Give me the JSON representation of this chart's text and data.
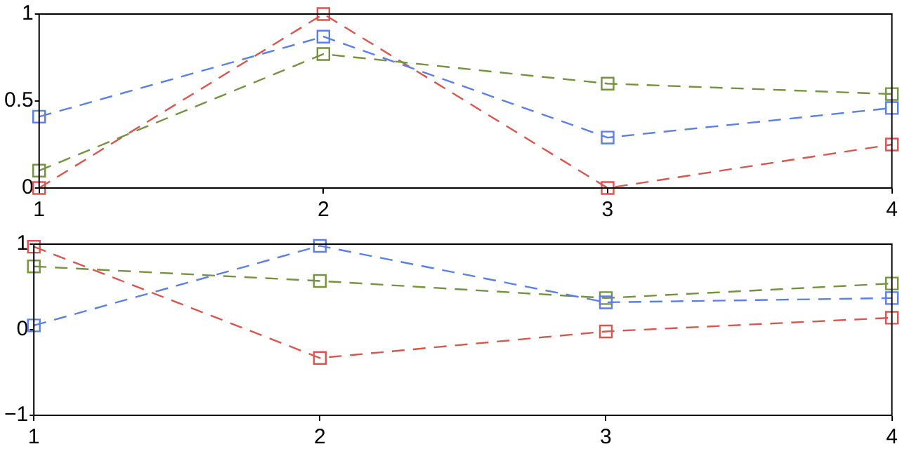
{
  "chart_data": [
    {
      "type": "line",
      "x": [
        1,
        2,
        3,
        4
      ],
      "xlim": [
        1,
        4
      ],
      "xticks": [
        1,
        2,
        3,
        4
      ],
      "ylim": [
        0,
        1
      ],
      "yticks": [
        0,
        0.5,
        1
      ],
      "marker": "square",
      "line_style": "dashed",
      "grid": false,
      "series": [
        {
          "color": "#5b7fe8",
          "values": [
            0.41,
            0.87,
            0.29,
            0.46
          ]
        },
        {
          "color": "#74923f",
          "values": [
            0.1,
            0.77,
            0.6,
            0.54
          ]
        },
        {
          "color": "#d9564f",
          "values": [
            0,
            1,
            0,
            0.25
          ]
        }
      ]
    },
    {
      "type": "line",
      "x": [
        1,
        2,
        3,
        4
      ],
      "xlim": [
        1,
        4
      ],
      "xticks": [
        1,
        2,
        3,
        4
      ],
      "ylim": [
        -1,
        1
      ],
      "yticks": [
        -1,
        0,
        1
      ],
      "marker": "square",
      "line_style": "dashed",
      "grid": false,
      "series": [
        {
          "color": "#5b7fe8",
          "values": [
            0.05,
            0.98,
            0.32,
            0.37
          ]
        },
        {
          "color": "#74923f",
          "values": [
            0.74,
            0.57,
            0.37,
            0.54
          ]
        },
        {
          "color": "#d9564f",
          "values": [
            0.97,
            -0.33,
            -0.02,
            0.14
          ]
        }
      ]
    }
  ]
}
